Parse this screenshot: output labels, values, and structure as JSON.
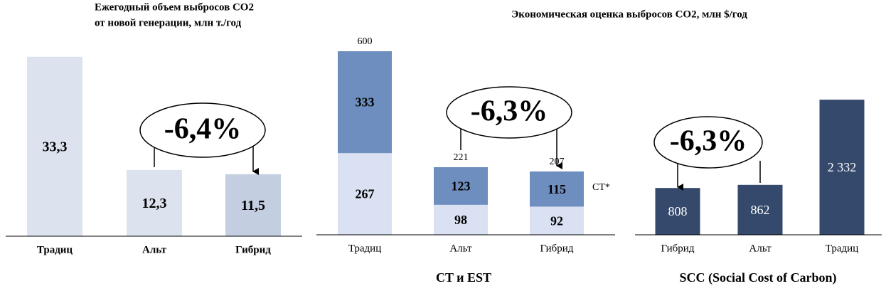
{
  "chart_data": [
    {
      "type": "bar",
      "title": [
        "Ежегодный объем выбросов CO2",
        "от новой генерации, млн  т./год"
      ],
      "categories": [
        "Традиц",
        "Альт",
        "Гибрид"
      ],
      "values": [
        33.3,
        12.3,
        11.5
      ],
      "value_labels": [
        "33,3",
        "12,3",
        "11,5"
      ],
      "colors": [
        "#dde3ee",
        "#dde3ee",
        "#c4cee1"
      ],
      "ylim": [
        0,
        40
      ],
      "annotation": "-6,4%"
    },
    {
      "type": "stacked_bar",
      "title": "Экономическая оценка выбросов CO2, млн $/год",
      "x_label": "CT и EST",
      "categories": [
        "Традиц",
        "Альт",
        "Гибрид"
      ],
      "series": [
        {
          "color": "#d9e1f3",
          "values": [
            267,
            98,
            92
          ]
        },
        {
          "name": "CT*",
          "color": "#6e8ebf",
          "values": [
            333,
            123,
            115
          ]
        }
      ],
      "totals": [
        600,
        221,
        207
      ],
      "ylim": [
        0,
        700
      ],
      "annotation": "-6,3%"
    },
    {
      "type": "bar",
      "x_label": "SCC (Social Cost of Carbon)",
      "categories": [
        "Гибрид",
        "Альт",
        "Традиц"
      ],
      "values": [
        808,
        862,
        2332
      ],
      "value_labels": [
        "808",
        "862",
        "2 332"
      ],
      "color": "#34496b",
      "ylim": [
        0,
        3500
      ],
      "annotation": "-6,3%"
    }
  ]
}
